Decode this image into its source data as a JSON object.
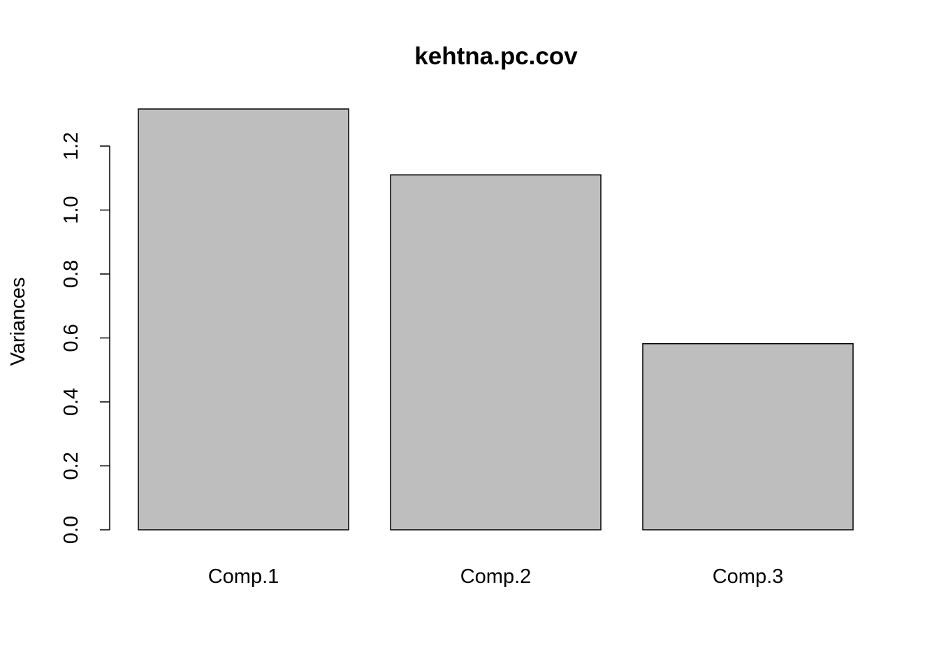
{
  "chart_data": {
    "type": "bar",
    "title": "kehtna.pc.cov",
    "xlabel": "",
    "ylabel": "Variances",
    "categories": [
      "Comp.1",
      "Comp.2",
      "Comp.3"
    ],
    "values": [
      1.316,
      1.11,
      0.582
    ],
    "ylim": [
      0,
      1.32
    ],
    "yticks": [
      0.0,
      0.2,
      0.4,
      0.6,
      0.8,
      1.0,
      1.2
    ],
    "ytick_labels": [
      "0.0",
      "0.2",
      "0.4",
      "0.6",
      "0.8",
      "1.0",
      "1.2"
    ],
    "bar_color": "#bebebe",
    "bar_border_color": "#000000",
    "grid": false,
    "legend": "none"
  }
}
